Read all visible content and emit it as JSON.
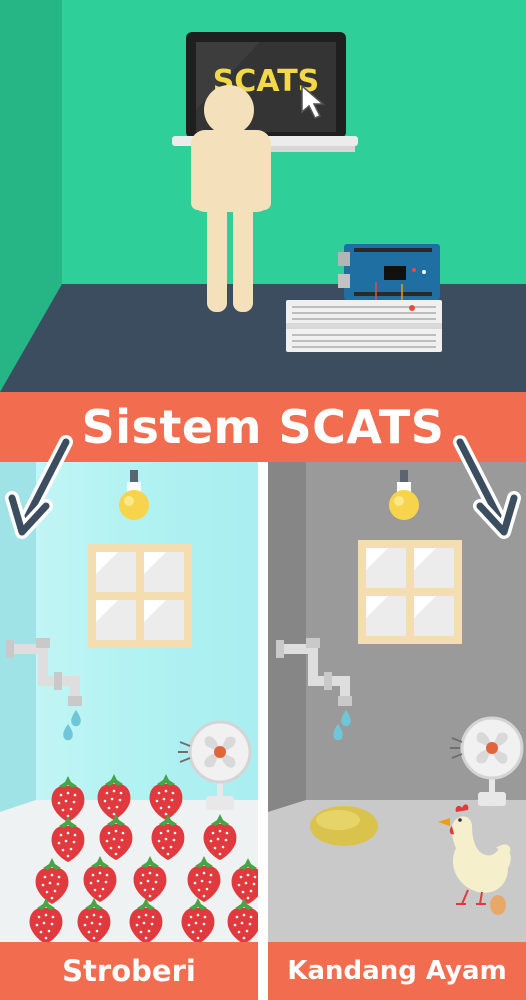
{
  "screen_text": "SCATS",
  "title": "Sistem SCATS",
  "rooms": {
    "left_label": "Stroberi",
    "right_label": "Kandang Ayam"
  },
  "colors": {
    "top_wall": "#2ecf98",
    "top_floor": "#3c4d60",
    "banner": "#f26c4f",
    "strawberry_room_wall": "#aef1f3",
    "chicken_room_wall": "#9a9a9a"
  }
}
